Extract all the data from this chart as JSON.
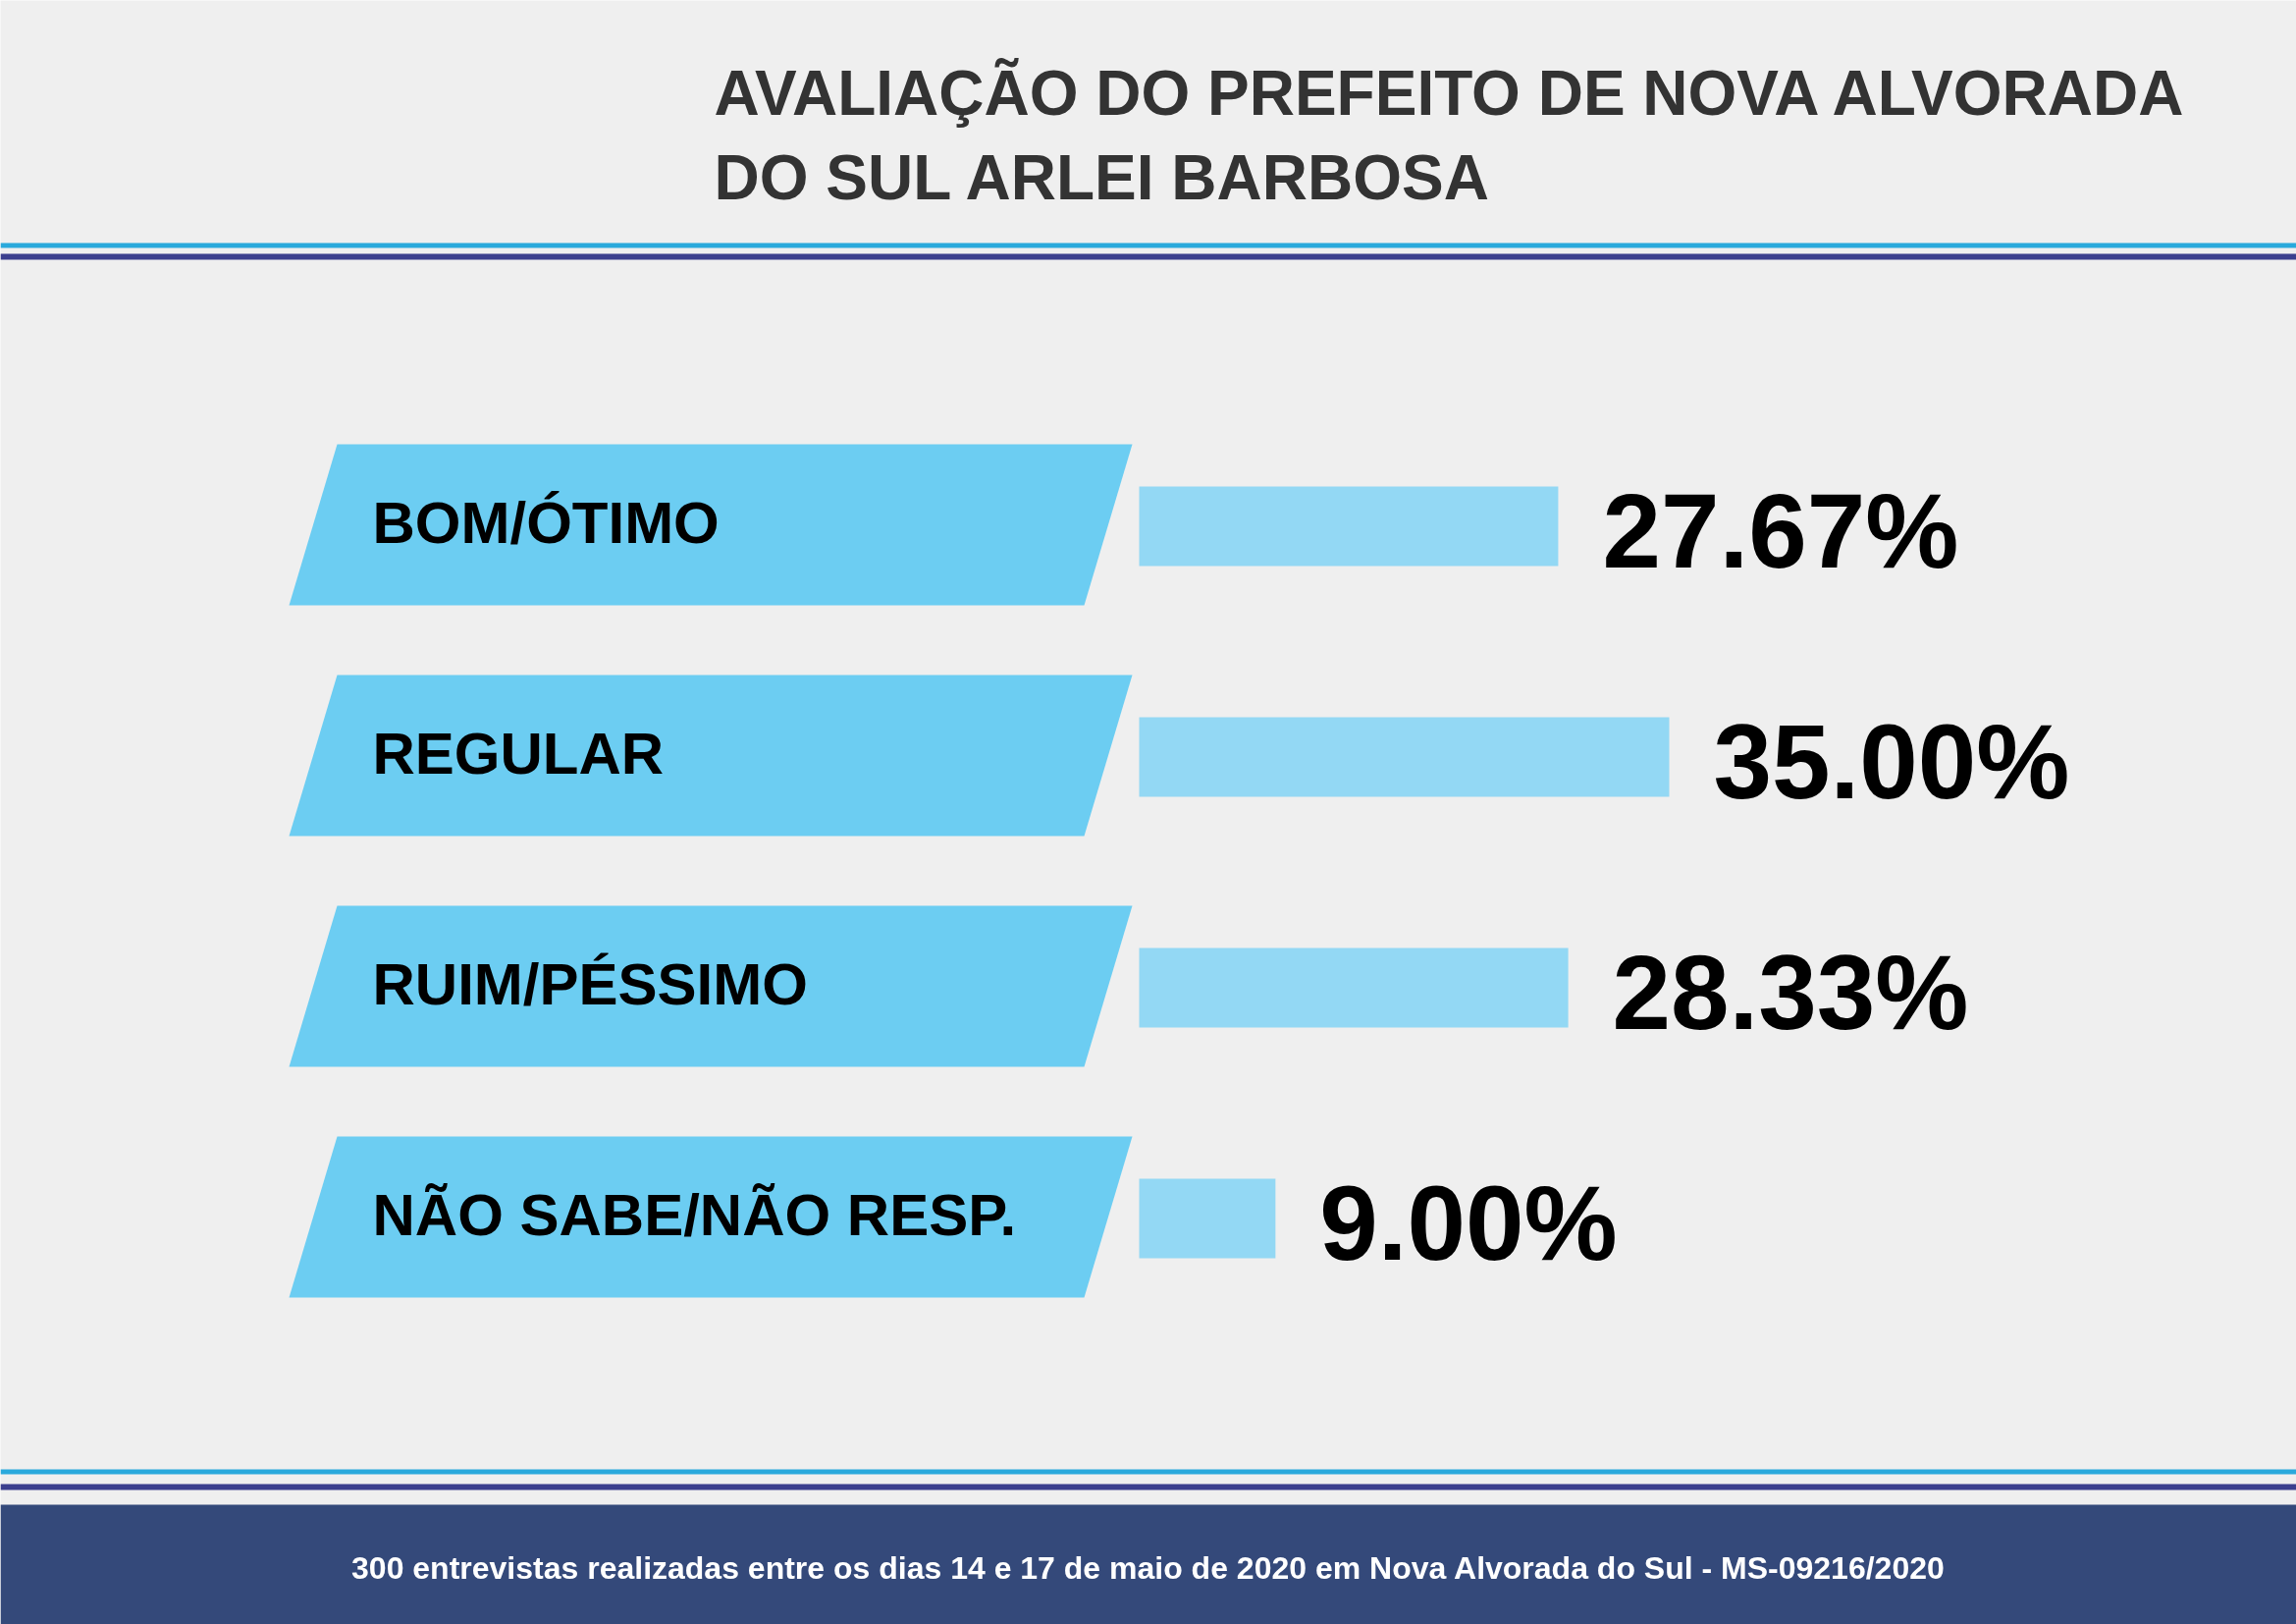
{
  "chart_data": {
    "type": "bar",
    "orientation": "horizontal",
    "title": "AVALIAÇÃO DO PREFEITO DE NOVA ALVORADA DO SUL ARLEI BARBOSA",
    "categories": [
      "BOM/ÓTIMO",
      "REGULAR",
      "RUIM/PÉSSIMO",
      "NÃO SABE/NÃO RESP."
    ],
    "values": [
      27.67,
      35.0,
      28.33,
      9.0
    ],
    "value_labels": [
      "27.67%",
      "35.00%",
      "28.33%",
      "9.00%"
    ],
    "color": "#93d8f4",
    "annotations": [
      "300 entrevistas realizadas entre os dias 14 e 17 de maio de 2020 em Nova Alvorada do Sul - MS-09216/2020"
    ]
  }
}
